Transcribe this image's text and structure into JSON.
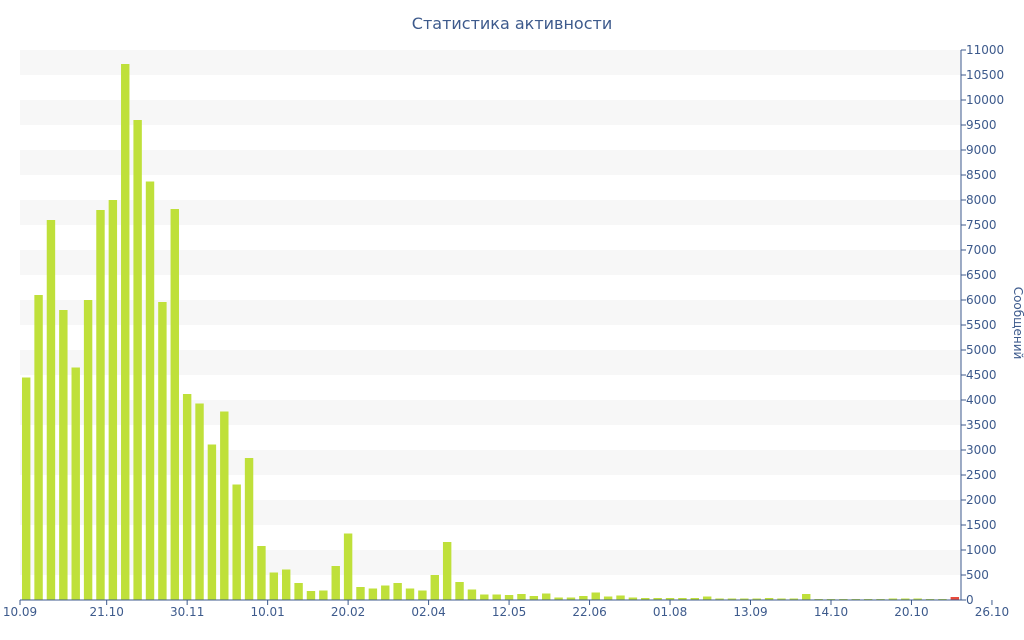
{
  "chart_data": {
    "type": "bar",
    "title": "Статистика активности",
    "xlabel": "",
    "ylabel": "Сообщений",
    "ylim": [
      0,
      11000
    ],
    "y_ticks": [
      0,
      500,
      1000,
      1500,
      2000,
      2500,
      3000,
      3500,
      4000,
      4500,
      5000,
      5500,
      6000,
      6500,
      7000,
      7500,
      8000,
      8500,
      9000,
      9500,
      10000,
      10500,
      11000
    ],
    "y_axis_side": "right",
    "grid": "horizontal bands",
    "x_tick_labels": [
      "10.09",
      "21.10",
      "30.11",
      "10.01",
      "20.02",
      "02.04",
      "12.05",
      "22.06",
      "01.08",
      "13.09",
      "14.10",
      "20.10",
      "26.10"
    ],
    "values": [
      4450,
      6100,
      7600,
      5800,
      4650,
      6000,
      7800,
      8000,
      10720,
      9600,
      8370,
      5960,
      7820,
      4120,
      3930,
      3110,
      3770,
      2310,
      2840,
      1080,
      550,
      610,
      340,
      180,
      190,
      680,
      1330,
      260,
      230,
      290,
      340,
      230,
      190,
      500,
      1160,
      360,
      210,
      110,
      110,
      100,
      120,
      80,
      130,
      50,
      50,
      80,
      150,
      70,
      90,
      50,
      40,
      40,
      40,
      40,
      40,
      70,
      30,
      30,
      30,
      30,
      40,
      30,
      30,
      120,
      20,
      20,
      20,
      20,
      20,
      20,
      30,
      30,
      30,
      20,
      20,
      60
    ],
    "bar_color": "#bfe03a",
    "last_bar_color": "#e84a3c",
    "band_color": "#f7f7f7",
    "axis_color": "#3d5a8c"
  }
}
